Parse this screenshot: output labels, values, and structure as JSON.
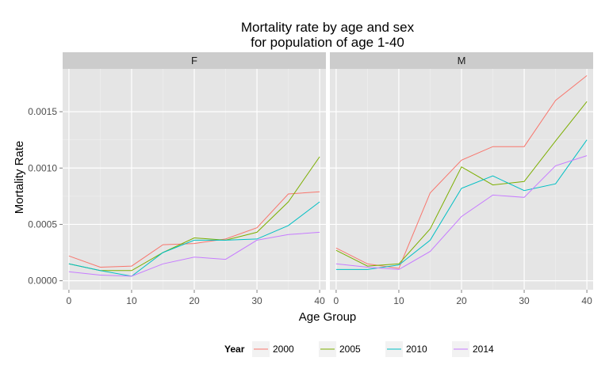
{
  "chart_data": {
    "type": "line",
    "title_lines": [
      "Mortality rate by age and sex",
      "for population of age 1-40"
    ],
    "xlabel": "Age Group",
    "ylabel": "Mortality Rate",
    "xlim": [
      -1,
      41
    ],
    "ylim": [
      -8e-05,
      0.00188
    ],
    "x_ticks": [
      0,
      10,
      20,
      30,
      40
    ],
    "y_ticks": [
      0,
      0.0005,
      0.001,
      0.0015
    ],
    "y_tick_labels": [
      "0.0000",
      "0.0005",
      "0.0010",
      "0.0015"
    ],
    "grid": true,
    "legend": {
      "title": "Year",
      "position": "bottom",
      "entries": [
        {
          "label": "2000",
          "color": "#F8766D"
        },
        {
          "label": "2005",
          "color": "#7CAE00"
        },
        {
          "label": "2010",
          "color": "#00BFC4"
        },
        {
          "label": "2014",
          "color": "#C77CFF"
        }
      ]
    },
    "x": [
      0,
      5,
      10,
      15,
      20,
      25,
      30,
      35,
      40
    ],
    "facets": [
      {
        "label": "F",
        "series": [
          {
            "name": "2000",
            "values": [
              0.00022,
              0.00012,
              0.00013,
              0.00032,
              0.00033,
              0.00037,
              0.00047,
              0.00077,
              0.00079
            ]
          },
          {
            "name": "2005",
            "values": [
              0.00015,
              9e-05,
              9e-05,
              0.00025,
              0.00038,
              0.00036,
              0.00043,
              0.0007,
              0.0011
            ]
          },
          {
            "name": "2010",
            "values": [
              0.00015,
              9e-05,
              4e-05,
              0.00025,
              0.00036,
              0.00036,
              0.00037,
              0.00049,
              0.0007
            ]
          },
          {
            "name": "2014",
            "values": [
              8e-05,
              5e-05,
              4e-05,
              0.00015,
              0.00021,
              0.00019,
              0.00036,
              0.00041,
              0.00043
            ]
          }
        ]
      },
      {
        "label": "M",
        "series": [
          {
            "name": "2000",
            "values": [
              0.00029,
              0.00015,
              0.00011,
              0.00078,
              0.00107,
              0.00119,
              0.00119,
              0.0016,
              0.00182
            ]
          },
          {
            "name": "2005",
            "values": [
              0.00027,
              0.00013,
              0.00015,
              0.00046,
              0.00101,
              0.00085,
              0.00088,
              0.00124,
              0.00159
            ]
          },
          {
            "name": "2010",
            "values": [
              0.0001,
              0.0001,
              0.00014,
              0.00036,
              0.00082,
              0.00093,
              0.0008,
              0.00086,
              0.00125
            ]
          },
          {
            "name": "2014",
            "values": [
              0.00015,
              0.00012,
              0.0001,
              0.00026,
              0.00057,
              0.00076,
              0.00074,
              0.00102,
              0.00111
            ]
          }
        ]
      }
    ]
  }
}
